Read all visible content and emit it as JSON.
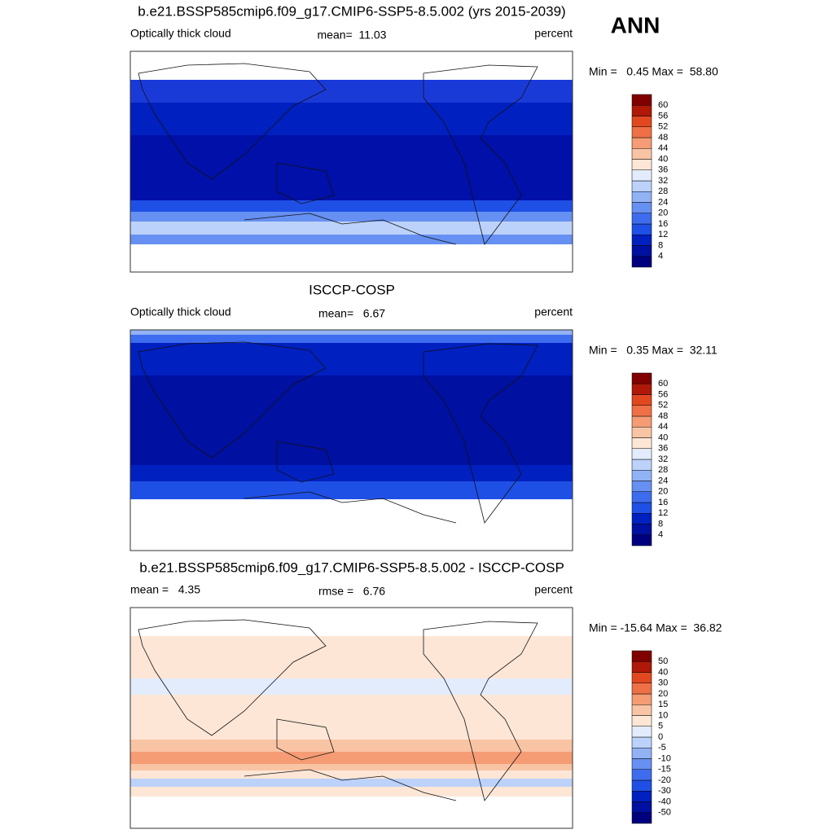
{
  "header": {
    "season": "ANN"
  },
  "panels": [
    {
      "title": "b.e21.BSSP585cmip6.f09_g17.CMIP6-SSP5-8.5.002 (yrs 2015-2039)",
      "left": "Optically thick cloud",
      "center": "mean=  11.03",
      "right": "percent",
      "range": "Min =   0.45 Max =  58.80",
      "colorbar": {
        "levels": [
          4,
          8,
          12,
          16,
          20,
          24,
          28,
          32,
          36,
          40,
          44,
          48,
          52,
          56,
          60
        ],
        "colors": [
          "#00007f",
          "#0010a0",
          "#0020c0",
          "#1f50e6",
          "#3d6cee",
          "#6690f2",
          "#92b2f6",
          "#bcd2fa",
          "#e2ecfc",
          "#fde6d6",
          "#f9c4a4",
          "#f59c74",
          "#ef7046",
          "#e24820",
          "#b01808",
          "#800000"
        ]
      }
    },
    {
      "title": "ISCCP-COSP",
      "left": "Optically thick cloud",
      "center": "mean=   6.67",
      "right": "percent",
      "range": "Min =   0.35 Max =  32.11",
      "colorbar": {
        "levels": [
          4,
          8,
          12,
          16,
          20,
          24,
          28,
          32,
          36,
          40,
          44,
          48,
          52,
          56,
          60
        ],
        "colors": [
          "#00007f",
          "#0010a0",
          "#0020c0",
          "#1f50e6",
          "#3d6cee",
          "#6690f2",
          "#92b2f6",
          "#bcd2fa",
          "#e2ecfc",
          "#fde6d6",
          "#f9c4a4",
          "#f59c74",
          "#ef7046",
          "#e24820",
          "#b01808",
          "#800000"
        ]
      }
    },
    {
      "title": "b.e21.BSSP585cmip6.f09_g17.CMIP6-SSP5-8.5.002 - ISCCP-COSP",
      "left": "mean =   4.35",
      "center": "rmse =   6.76",
      "right": "percent",
      "range": "Min = -15.64 Max =  36.82",
      "colorbar": {
        "levels": [
          -50,
          -40,
          -30,
          -20,
          -15,
          -10,
          -5,
          0,
          5,
          10,
          15,
          20,
          30,
          40,
          50
        ],
        "colors": [
          "#00007f",
          "#0010a0",
          "#0020c0",
          "#1f50e6",
          "#3d6cee",
          "#6690f2",
          "#92b2f6",
          "#bcd2fa",
          "#e2ecfc",
          "#fde6d6",
          "#f9c4a4",
          "#f59c74",
          "#ef7046",
          "#e24820",
          "#b01808",
          "#800000"
        ]
      }
    }
  ]
}
